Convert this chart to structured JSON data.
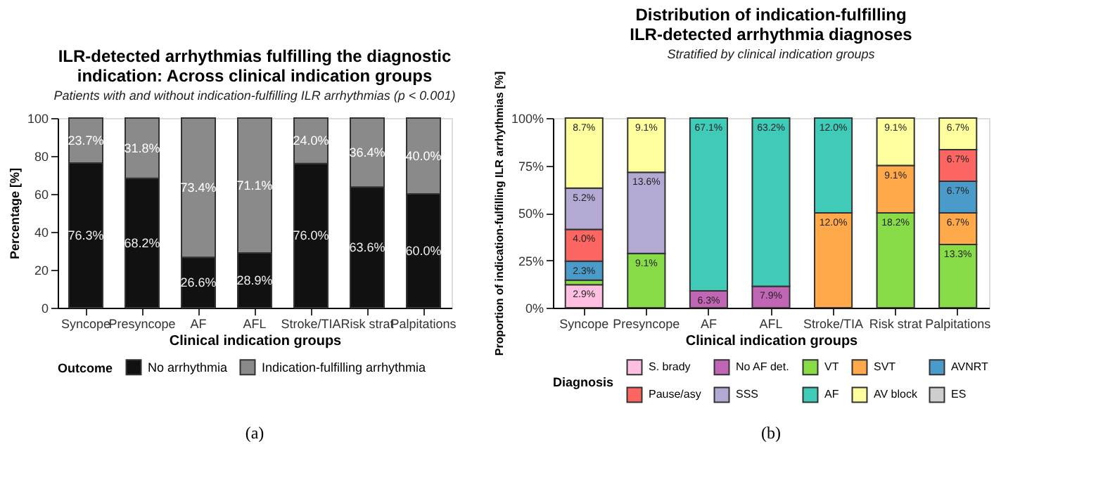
{
  "chart_data": [
    {
      "type": "bar",
      "stacked": true,
      "title": "ILR-detected arrhythmias fulfilling the diagnostic indication: Across clinical indication groups",
      "subtitle": "Patients with and without indication-fulfilling ILR arrhythmias (p < 0.001)",
      "xlabel": "Clinical indication groups",
      "ylabel": "Percentage [%]",
      "legend_title": "Outcome",
      "legend": "bottom",
      "categories": [
        "Syncope",
        "Presyncope",
        "AF",
        "AFL",
        "Stroke/TIA",
        "Risk strat",
        "Palpitations"
      ],
      "series": [
        {
          "name": "No arrhythmia",
          "color": "#111111",
          "values": [
            76.3,
            68.2,
            26.6,
            28.9,
            76.0,
            63.6,
            60.0
          ],
          "value_labels": [
            "76.3%",
            "68.2%",
            "26.6%",
            "28.9%",
            "76.0%",
            "63.6%",
            "60.0%"
          ]
        },
        {
          "name": "Indication-fulfilling arrhythmia",
          "color": "#8a8a8a",
          "values": [
            23.7,
            31.8,
            73.4,
            71.1,
            24.0,
            36.4,
            40.0
          ],
          "value_labels": [
            "23.7%",
            "31.8%",
            "73.4%",
            "71.1%",
            "24.0%",
            "36.4%",
            "40.0%"
          ]
        }
      ],
      "ylim": [
        0,
        100
      ],
      "yticks": [
        0,
        20,
        40,
        60,
        80,
        100
      ],
      "grid": false,
      "annotations": [
        "(a)"
      ]
    },
    {
      "type": "bar",
      "stacked": true,
      "title": "Distribution of indication-fulfilling ILR-detected arrhythmia diagnoses",
      "subtitle": "Stratified by clinical indication groups",
      "xlabel": "Clinical indication groups",
      "ylabel": "Proportion of indication-fulfilling ILR arrhythmias [%]",
      "legend_title": "Diagnosis",
      "legend": "bottom",
      "categories": [
        "Syncope",
        "Presyncope",
        "AF",
        "AFL",
        "Stroke/TIA",
        "Risk strat",
        "Palpitations"
      ],
      "series": [
        {
          "name": "S. brady",
          "color": "#ffbfe0",
          "values": [
            12.1,
            null,
            null,
            null,
            null,
            null,
            null
          ]
        },
        {
          "name": "No AF det.",
          "color": "#c066b5",
          "values": [
            null,
            null,
            8.9,
            11.3,
            null,
            null,
            null
          ]
        },
        {
          "name": "VT",
          "color": "#88dc48",
          "values": [
            2.4,
            28.6,
            null,
            null,
            null,
            50.0,
            33.3
          ]
        },
        {
          "name": "SVT",
          "color": "#ffa94a",
          "values": [
            null,
            null,
            null,
            null,
            50.0,
            25.0,
            16.7
          ]
        },
        {
          "name": "AVNRT",
          "color": "#4a9bc9",
          "values": [
            10.0,
            null,
            null,
            null,
            null,
            null,
            16.7
          ]
        },
        {
          "name": "Pause/asy",
          "color": "#fb6662",
          "values": [
            16.8,
            null,
            null,
            null,
            null,
            null,
            16.6
          ]
        },
        {
          "name": "SSS",
          "color": "#b3a9d3",
          "values": [
            21.8,
            42.8,
            null,
            null,
            null,
            null,
            null
          ]
        },
        {
          "name": "AF",
          "color": "#40cbb9",
          "values": [
            null,
            null,
            91.1,
            88.7,
            50.0,
            null,
            null
          ]
        },
        {
          "name": "AV block",
          "color": "#fffe9e",
          "values": [
            36.9,
            28.6,
            null,
            null,
            null,
            25.0,
            16.7
          ]
        },
        {
          "name": "ES",
          "color": "#cfcfcf",
          "values": [
            null,
            null,
            null,
            null,
            null,
            null,
            null
          ]
        }
      ],
      "ylim": [
        0,
        100
      ],
      "yticks": [
        {
          "value": 0,
          "label": "0%"
        },
        {
          "value": 25,
          "label": "25%"
        },
        {
          "value": 50,
          "label": "50%"
        },
        {
          "value": 75,
          "label": "75%"
        },
        {
          "value": 100,
          "label": "100%"
        }
      ],
      "grid": false,
      "annotations": [
        {
          "text": "2.9%",
          "x": "Syncope",
          "y": 12.1
        },
        {
          "text": "2.3%",
          "x": "Syncope",
          "y": 24.5
        },
        {
          "text": "4.0%",
          "x": "Syncope",
          "y": 41.3
        },
        {
          "text": "5.2%",
          "x": "Syncope",
          "y": 63.1
        },
        {
          "text": "8.7%",
          "x": "Syncope",
          "y": 100
        },
        {
          "text": "9.1%",
          "x": "Presyncope",
          "y": 28.6
        },
        {
          "text": "13.6%",
          "x": "Presyncope",
          "y": 71.4
        },
        {
          "text": "9.1%",
          "x": "Presyncope",
          "y": 100
        },
        {
          "text": "6.3%",
          "x": "AF",
          "y": 8.9
        },
        {
          "text": "67.1%",
          "x": "AF",
          "y": 100
        },
        {
          "text": "7.9%",
          "x": "AFL",
          "y": 11.3
        },
        {
          "text": "63.2%",
          "x": "AFL",
          "y": 100
        },
        {
          "text": "12.0%",
          "x": "Stroke/TIA",
          "y": 50
        },
        {
          "text": "12.0%",
          "x": "Stroke/TIA",
          "y": 100
        },
        {
          "text": "18.2%",
          "x": "Risk strat",
          "y": 50
        },
        {
          "text": "9.1%",
          "x": "Risk strat",
          "y": 75
        },
        {
          "text": "9.1%",
          "x": "Risk strat",
          "y": 100
        },
        {
          "text": "13.3%",
          "x": "Palpitations",
          "y": 33.3
        },
        {
          "text": "6.7%",
          "x": "Palpitations",
          "y": 50
        },
        {
          "text": "6.7%",
          "x": "Palpitations",
          "y": 66.7
        },
        {
          "text": "6.7%",
          "x": "Palpitations",
          "y": 83.3
        },
        {
          "text": "6.7%",
          "x": "Palpitations",
          "y": 100
        },
        "(b)"
      ]
    }
  ]
}
